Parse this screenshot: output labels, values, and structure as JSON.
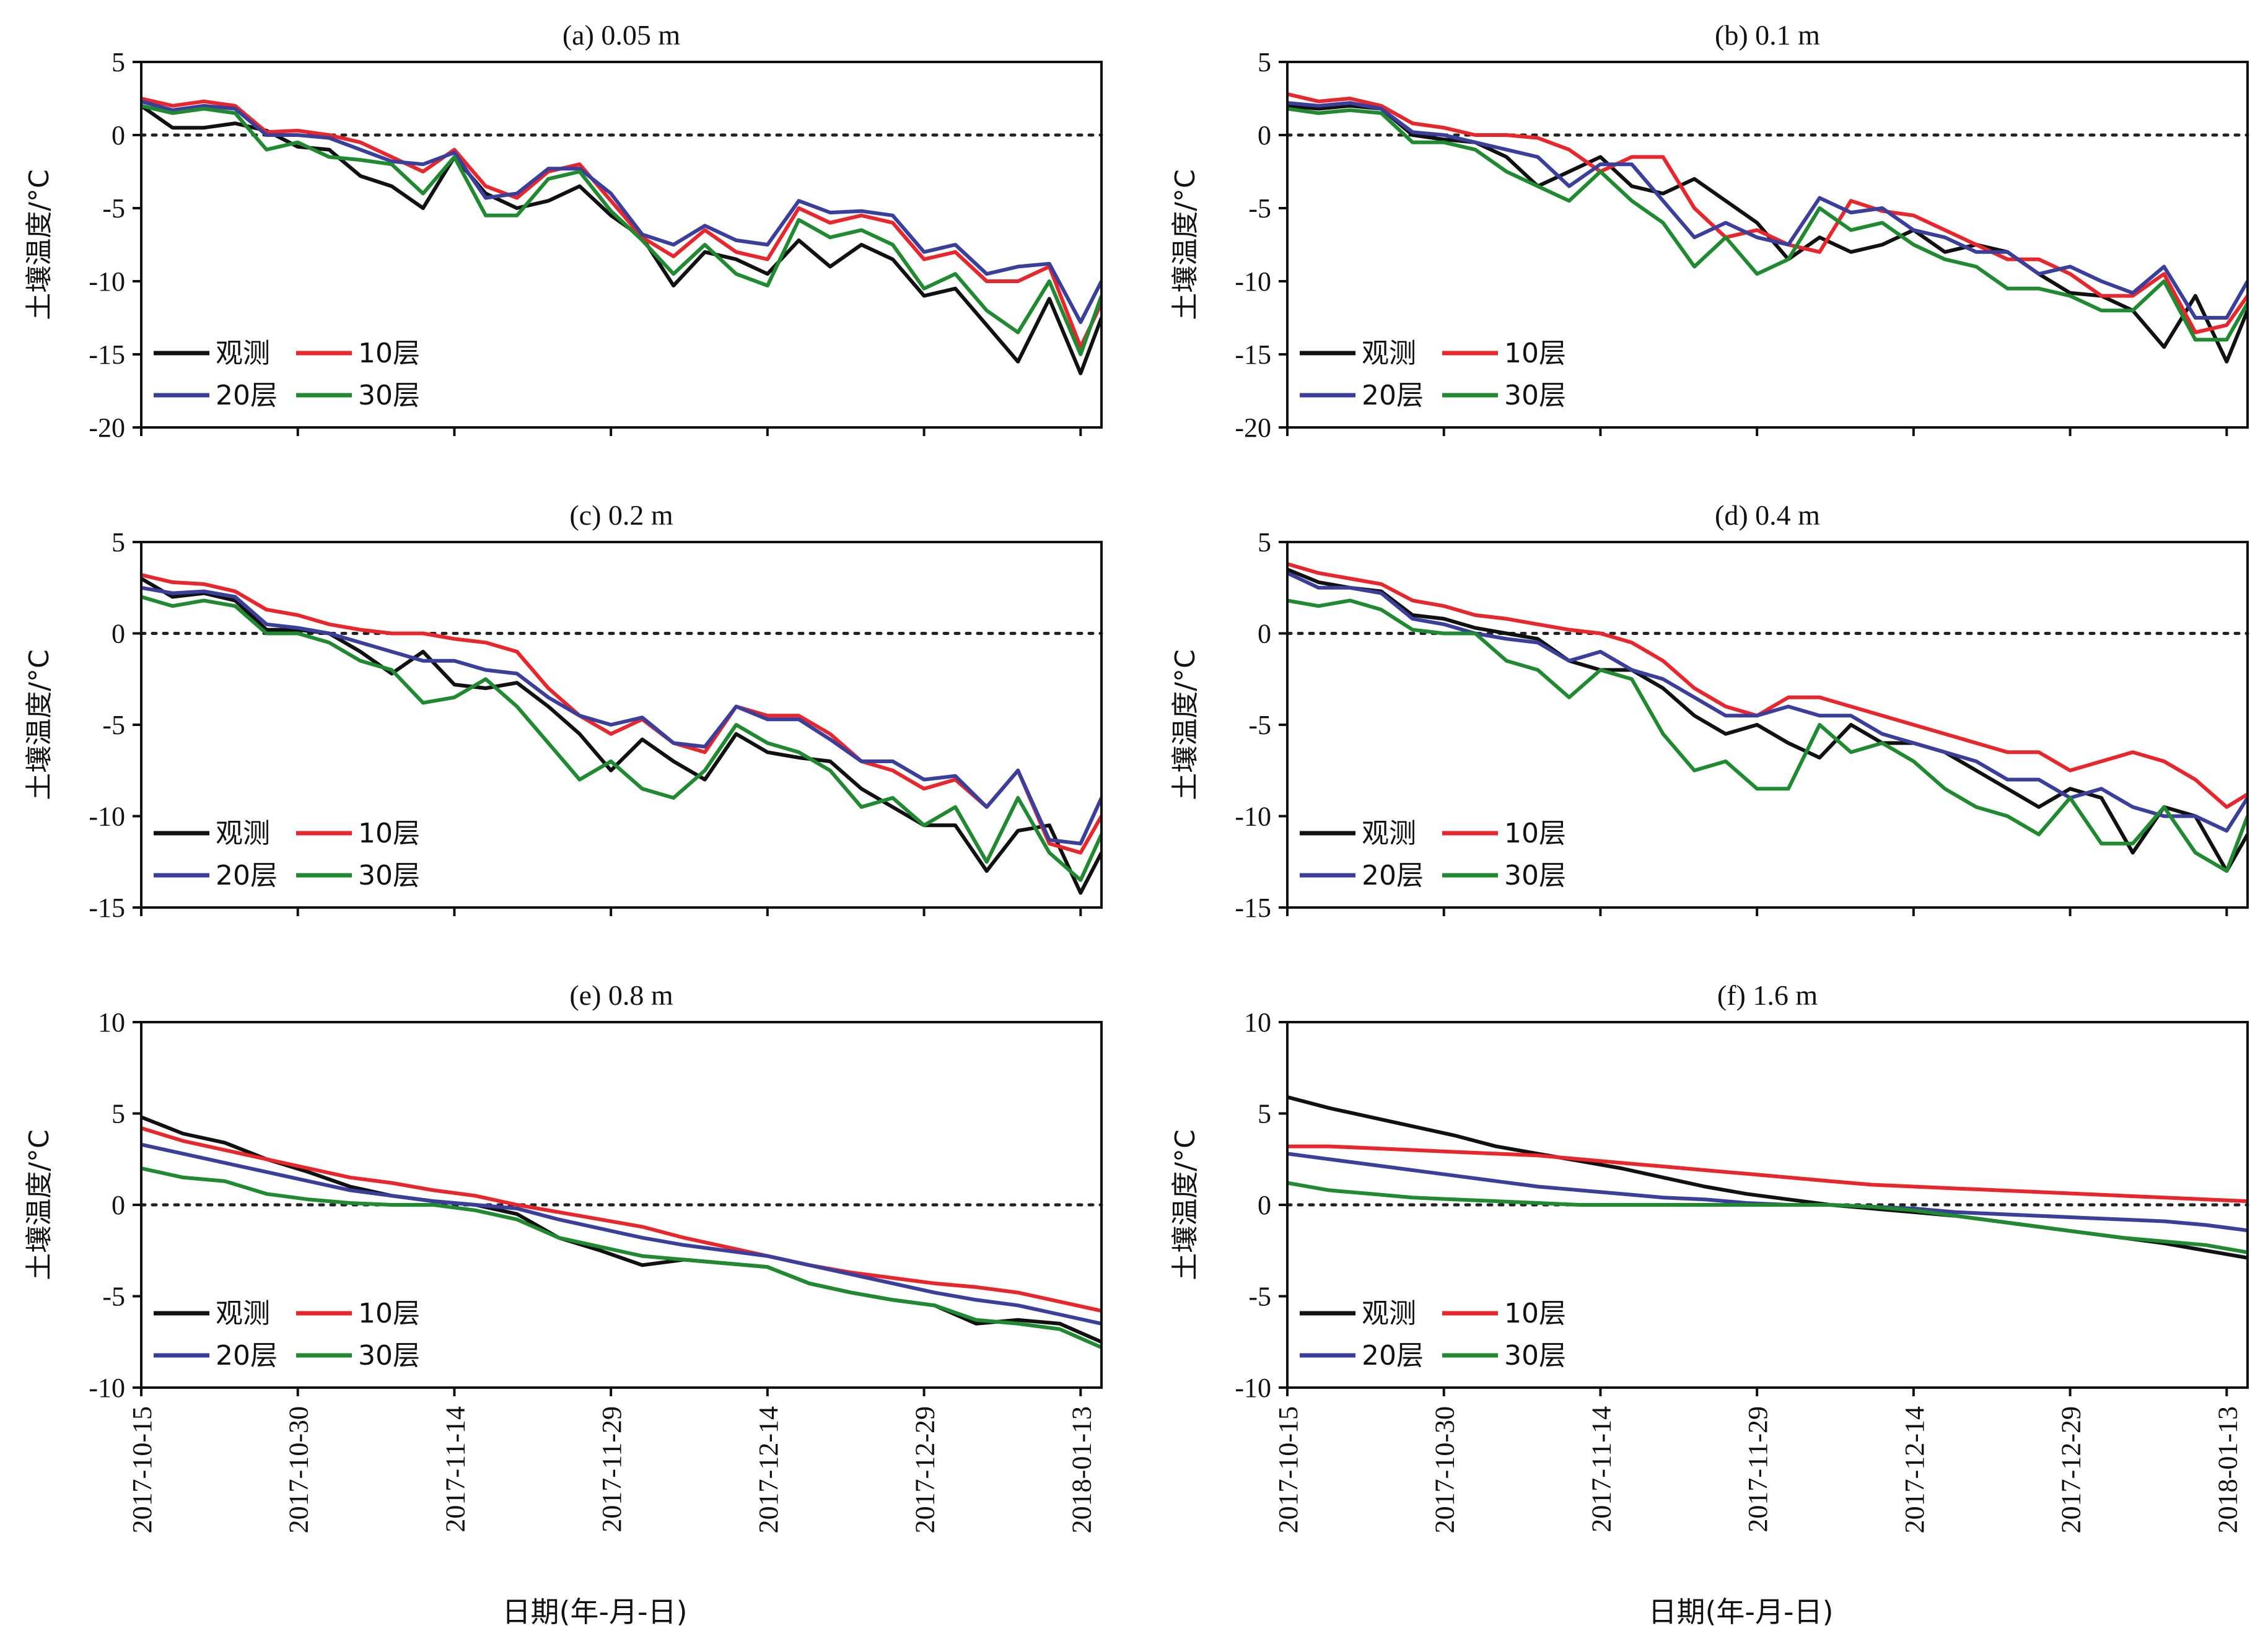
{
  "figure": {
    "xlabel": "日期(年-月-日)",
    "ylabel": "土壤温度/°C",
    "x_ticks": [
      "2017-10-15",
      "2017-10-30",
      "2017-11-14",
      "2017-11-29",
      "2017-12-14",
      "2017-12-29",
      "2018-01-13"
    ],
    "colors": {
      "观测": "#111111",
      "10层": "#e8262c",
      "20层": "#3b3f9c",
      "30层": "#1f8a2f"
    }
  },
  "chart_data": [
    {
      "type": "line",
      "title": "(a) 0.05 m",
      "ylim": [
        -20,
        5
      ],
      "yticks": [
        5,
        0,
        -5,
        -10,
        -15,
        -20
      ],
      "xlabel": "",
      "ylabel": "土壤温度/°C",
      "legend": [
        "观测",
        "10层",
        "20层",
        "30层"
      ],
      "legend_placement": "bottom-left",
      "x": [
        0,
        3,
        6,
        9,
        12,
        15,
        18,
        21,
        24,
        27,
        30,
        33,
        36,
        39,
        42,
        45,
        48,
        51,
        54,
        57,
        60,
        63,
        66,
        69,
        72,
        75,
        78,
        81,
        84,
        87,
        90,
        92
      ],
      "series": [
        {
          "name": "观测",
          "values": [
            2.0,
            0.5,
            0.5,
            0.8,
            0.3,
            -0.8,
            -1.0,
            -2.8,
            -3.5,
            -5.0,
            -1.5,
            -4.0,
            -5.0,
            -4.5,
            -3.5,
            -5.5,
            -7.0,
            -10.3,
            -8.0,
            -8.5,
            -9.5,
            -7.2,
            -9.0,
            -7.5,
            -8.5,
            -11.0,
            -10.5,
            -13.0,
            -15.5,
            -11.2,
            -16.3,
            -12.5
          ]
        },
        {
          "name": "10层",
          "values": [
            2.5,
            2.0,
            2.3,
            2.0,
            0.2,
            0.3,
            0.0,
            -0.5,
            -1.5,
            -2.5,
            -1.0,
            -3.5,
            -4.3,
            -2.5,
            -2.0,
            -4.5,
            -7.0,
            -8.3,
            -6.5,
            -8.0,
            -8.5,
            -5.0,
            -6.0,
            -5.5,
            -6.0,
            -8.5,
            -8.0,
            -10.0,
            -10.0,
            -9.0,
            -14.5,
            -11.5
          ]
        },
        {
          "name": "20层",
          "values": [
            2.3,
            1.7,
            2.0,
            1.8,
            0.0,
            0.0,
            -0.2,
            -1.0,
            -1.8,
            -2.0,
            -1.2,
            -4.3,
            -4.0,
            -2.3,
            -2.3,
            -4.0,
            -6.8,
            -7.5,
            -6.2,
            -7.2,
            -7.5,
            -4.5,
            -5.3,
            -5.2,
            -5.5,
            -8.0,
            -7.5,
            -9.5,
            -9.0,
            -8.8,
            -12.8,
            -10.0
          ]
        },
        {
          "name": "30层",
          "values": [
            2.0,
            1.5,
            1.8,
            1.5,
            -1.0,
            -0.5,
            -1.5,
            -1.7,
            -2.0,
            -4.0,
            -1.5,
            -5.5,
            -5.5,
            -3.0,
            -2.5,
            -5.2,
            -7.2,
            -9.5,
            -7.5,
            -9.5,
            -10.3,
            -5.8,
            -7.0,
            -6.5,
            -7.5,
            -10.5,
            -9.5,
            -12.0,
            -13.5,
            -10.0,
            -15.0,
            -11.0
          ]
        }
      ]
    },
    {
      "type": "line",
      "title": "(b) 0.1 m",
      "ylim": [
        -20,
        5
      ],
      "yticks": [
        5,
        0,
        -5,
        -10,
        -15,
        -20
      ],
      "xlabel": "",
      "ylabel": "土壤温度/°C",
      "legend": [
        "观测",
        "10层",
        "20层",
        "30层"
      ],
      "legend_placement": "bottom-left",
      "x": [
        0,
        3,
        6,
        9,
        12,
        15,
        18,
        21,
        24,
        27,
        30,
        33,
        36,
        39,
        42,
        45,
        48,
        51,
        54,
        57,
        60,
        63,
        66,
        69,
        72,
        75,
        78,
        81,
        84,
        87,
        90,
        92
      ],
      "series": [
        {
          "name": "观测",
          "values": [
            2.0,
            1.8,
            2.0,
            1.8,
            0.0,
            -0.3,
            -0.5,
            -1.5,
            -3.5,
            -2.5,
            -1.5,
            -3.5,
            -4.0,
            -3.0,
            -4.5,
            -6.0,
            -8.5,
            -7.0,
            -8.0,
            -7.5,
            -6.5,
            -8.0,
            -7.5,
            -8.0,
            -9.5,
            -10.8,
            -11.0,
            -12.0,
            -14.5,
            -11.0,
            -15.5,
            -12.0
          ]
        },
        {
          "name": "10层",
          "values": [
            2.8,
            2.3,
            2.5,
            2.0,
            0.8,
            0.5,
            0.0,
            0.0,
            -0.2,
            -1.0,
            -2.5,
            -1.5,
            -1.5,
            -5.0,
            -7.0,
            -6.5,
            -7.5,
            -8.0,
            -4.5,
            -5.2,
            -5.5,
            -6.5,
            -7.5,
            -8.5,
            -8.5,
            -9.5,
            -11.0,
            -11.0,
            -9.5,
            -13.5,
            -13.0,
            -11.0
          ]
        },
        {
          "name": "20层",
          "values": [
            2.2,
            2.0,
            2.2,
            1.8,
            0.2,
            0.0,
            -0.5,
            -1.0,
            -1.5,
            -3.5,
            -2.0,
            -2.0,
            -4.5,
            -7.0,
            -6.0,
            -7.0,
            -7.5,
            -4.3,
            -5.3,
            -5.0,
            -6.5,
            -7.0,
            -8.0,
            -8.0,
            -9.5,
            -9.0,
            -10.0,
            -10.8,
            -9.0,
            -12.5,
            -12.5,
            -10.0
          ]
        },
        {
          "name": "30层",
          "values": [
            1.8,
            1.5,
            1.7,
            1.5,
            -0.5,
            -0.5,
            -1.0,
            -2.5,
            -3.5,
            -4.5,
            -2.5,
            -4.5,
            -6.0,
            -9.0,
            -7.0,
            -9.5,
            -8.5,
            -5.0,
            -6.5,
            -6.0,
            -7.5,
            -8.5,
            -9.0,
            -10.5,
            -10.5,
            -11.0,
            -12.0,
            -12.0,
            -10.0,
            -14.0,
            -14.0,
            -11.5
          ]
        }
      ]
    },
    {
      "type": "line",
      "title": "(c) 0.2 m",
      "ylim": [
        -15,
        5
      ],
      "yticks": [
        5,
        0,
        -5,
        -10,
        -15
      ],
      "xlabel": "",
      "ylabel": "土壤温度/°C",
      "legend": [
        "观测",
        "10层",
        "20层",
        "30层"
      ],
      "legend_placement": "bottom-left",
      "x": [
        0,
        3,
        6,
        9,
        12,
        15,
        18,
        21,
        24,
        27,
        30,
        33,
        36,
        39,
        42,
        45,
        48,
        51,
        54,
        57,
        60,
        63,
        66,
        69,
        72,
        75,
        78,
        81,
        84,
        87,
        90,
        92
      ],
      "series": [
        {
          "name": "观测",
          "values": [
            3.0,
            2.0,
            2.2,
            1.8,
            0.2,
            0.2,
            0.0,
            -1.0,
            -2.2,
            -1.0,
            -2.8,
            -3.0,
            -2.7,
            -4.0,
            -5.5,
            -7.5,
            -5.8,
            -7.0,
            -8.0,
            -5.5,
            -6.5,
            -6.8,
            -7.0,
            -8.5,
            -9.5,
            -10.5,
            -10.5,
            -13.0,
            -10.8,
            -10.5,
            -14.2,
            -12.0
          ]
        },
        {
          "name": "10层",
          "values": [
            3.2,
            2.8,
            2.7,
            2.3,
            1.3,
            1.0,
            0.5,
            0.2,
            0.0,
            0.0,
            -0.3,
            -0.5,
            -1.0,
            -3.0,
            -4.5,
            -5.5,
            -4.7,
            -6.0,
            -6.5,
            -4.0,
            -4.5,
            -4.5,
            -5.5,
            -7.0,
            -7.5,
            -8.5,
            -8.0,
            -9.5,
            -7.5,
            -11.5,
            -12.0,
            -10.0
          ]
        },
        {
          "name": "20层",
          "values": [
            2.5,
            2.2,
            2.3,
            2.0,
            0.5,
            0.3,
            0.0,
            -0.5,
            -1.0,
            -1.5,
            -1.5,
            -2.0,
            -2.2,
            -3.5,
            -4.5,
            -5.0,
            -4.6,
            -6.0,
            -6.2,
            -4.0,
            -4.7,
            -4.7,
            -5.8,
            -7.0,
            -7.0,
            -8.0,
            -7.8,
            -9.5,
            -7.5,
            -11.3,
            -11.5,
            -9.0
          ]
        },
        {
          "name": "30层",
          "values": [
            2.0,
            1.5,
            1.8,
            1.5,
            0.0,
            0.0,
            -0.5,
            -1.5,
            -2.0,
            -3.8,
            -3.5,
            -2.5,
            -4.0,
            -6.0,
            -8.0,
            -7.0,
            -8.5,
            -9.0,
            -7.5,
            -5.0,
            -6.0,
            -6.5,
            -7.5,
            -9.5,
            -9.0,
            -10.5,
            -9.5,
            -12.5,
            -9.0,
            -12.0,
            -13.5,
            -11.0
          ]
        }
      ]
    },
    {
      "type": "line",
      "title": "(d) 0.4 m",
      "ylim": [
        -15,
        5
      ],
      "yticks": [
        5,
        0,
        -5,
        -10,
        -15
      ],
      "xlabel": "",
      "ylabel": "土壤温度/°C",
      "legend": [
        "观测",
        "10层",
        "20层",
        "30层"
      ],
      "legend_placement": "bottom-left",
      "x": [
        0,
        3,
        6,
        9,
        12,
        15,
        18,
        21,
        24,
        27,
        30,
        33,
        36,
        39,
        42,
        45,
        48,
        51,
        54,
        57,
        60,
        63,
        66,
        69,
        72,
        75,
        78,
        81,
        84,
        87,
        90,
        92
      ],
      "series": [
        {
          "name": "观测",
          "values": [
            3.5,
            2.8,
            2.5,
            2.3,
            1.0,
            0.8,
            0.3,
            0.0,
            -0.3,
            -1.5,
            -2.0,
            -2.0,
            -3.0,
            -4.5,
            -5.5,
            -5.0,
            -6.0,
            -6.8,
            -5.0,
            -6.0,
            -6.0,
            -6.5,
            -7.5,
            -8.5,
            -9.5,
            -8.5,
            -9.0,
            -12.0,
            -9.5,
            -10.0,
            -13.0,
            -11.0
          ]
        },
        {
          "name": "10层",
          "values": [
            3.8,
            3.3,
            3.0,
            2.7,
            1.8,
            1.5,
            1.0,
            0.8,
            0.5,
            0.2,
            0.0,
            -0.5,
            -1.5,
            -3.0,
            -4.0,
            -4.5,
            -3.5,
            -3.5,
            -4.0,
            -4.5,
            -5.0,
            -5.5,
            -6.0,
            -6.5,
            -6.5,
            -7.5,
            -7.0,
            -6.5,
            -7.0,
            -8.0,
            -9.5,
            -8.8
          ]
        },
        {
          "name": "20层",
          "values": [
            3.3,
            2.5,
            2.5,
            2.2,
            0.8,
            0.5,
            0.0,
            -0.3,
            -0.5,
            -1.5,
            -1.0,
            -2.0,
            -2.5,
            -3.5,
            -4.5,
            -4.5,
            -4.0,
            -4.5,
            -4.5,
            -5.5,
            -6.0,
            -6.5,
            -7.0,
            -8.0,
            -8.0,
            -9.0,
            -8.5,
            -9.5,
            -10.0,
            -10.0,
            -10.8,
            -9.0
          ]
        },
        {
          "name": "30层",
          "values": [
            1.8,
            1.5,
            1.8,
            1.3,
            0.2,
            0.0,
            0.0,
            -1.5,
            -2.0,
            -3.5,
            -2.0,
            -2.5,
            -5.5,
            -7.5,
            -7.0,
            -8.5,
            -8.5,
            -5.0,
            -6.5,
            -6.0,
            -7.0,
            -8.5,
            -9.5,
            -10.0,
            -11.0,
            -9.0,
            -11.5,
            -11.5,
            -9.5,
            -12.0,
            -13.0,
            -10.0
          ]
        }
      ]
    },
    {
      "type": "line",
      "title": "(e) 0.8 m",
      "ylim": [
        -10,
        10
      ],
      "yticks": [
        10,
        5,
        0,
        -5,
        -10
      ],
      "xlabel": "日期(年-月-日)",
      "ylabel": "土壤温度/°C",
      "legend": [
        "观测",
        "10层",
        "20层",
        "30层"
      ],
      "legend_placement": "bottom-left",
      "x": [
        0,
        4,
        8,
        12,
        16,
        20,
        24,
        28,
        32,
        36,
        40,
        44,
        48,
        52,
        56,
        60,
        64,
        68,
        72,
        76,
        80,
        84,
        88,
        92
      ],
      "series": [
        {
          "name": "观测",
          "values": [
            4.8,
            3.9,
            3.4,
            2.5,
            1.8,
            1.0,
            0.5,
            0.2,
            0.0,
            -0.5,
            -1.8,
            -2.5,
            -3.3,
            -3.0,
            -3.2,
            -3.4,
            -4.3,
            -4.8,
            -5.2,
            -5.5,
            -6.5,
            -6.3,
            -6.5,
            -7.5
          ]
        },
        {
          "name": "10层",
          "values": [
            4.2,
            3.5,
            3.0,
            2.5,
            2.0,
            1.5,
            1.2,
            0.8,
            0.5,
            0.0,
            -0.4,
            -0.8,
            -1.2,
            -1.8,
            -2.3,
            -2.8,
            -3.3,
            -3.7,
            -4.0,
            -4.3,
            -4.5,
            -4.8,
            -5.3,
            -5.8
          ]
        },
        {
          "name": "20层",
          "values": [
            3.3,
            2.8,
            2.3,
            1.8,
            1.3,
            0.8,
            0.5,
            0.2,
            0.0,
            -0.2,
            -0.8,
            -1.3,
            -1.8,
            -2.2,
            -2.5,
            -2.8,
            -3.3,
            -3.8,
            -4.3,
            -4.8,
            -5.2,
            -5.5,
            -6.0,
            -6.5
          ]
        },
        {
          "name": "30层",
          "values": [
            2.0,
            1.5,
            1.3,
            0.6,
            0.3,
            0.1,
            0.0,
            0.0,
            -0.3,
            -0.8,
            -1.8,
            -2.3,
            -2.8,
            -3.0,
            -3.2,
            -3.4,
            -4.3,
            -4.8,
            -5.2,
            -5.5,
            -6.3,
            -6.5,
            -6.8,
            -7.8
          ]
        }
      ]
    },
    {
      "type": "line",
      "title": "(f) 1.6 m",
      "ylim": [
        -10,
        10
      ],
      "yticks": [
        10,
        5,
        0,
        -5,
        -10
      ],
      "xlabel": "日期(年-月-日)",
      "ylabel": "土壤温度/°C",
      "legend": [
        "观测",
        "10层",
        "20层",
        "30层"
      ],
      "legend_placement": "bottom-left",
      "x": [
        0,
        4,
        8,
        12,
        16,
        20,
        24,
        28,
        32,
        36,
        40,
        44,
        48,
        52,
        56,
        60,
        64,
        68,
        72,
        76,
        80,
        84,
        88,
        92
      ],
      "series": [
        {
          "name": "观测",
          "values": [
            5.9,
            5.3,
            4.8,
            4.3,
            3.8,
            3.2,
            2.8,
            2.4,
            2.0,
            1.5,
            1.0,
            0.6,
            0.3,
            0.0,
            -0.2,
            -0.4,
            -0.6,
            -0.9,
            -1.2,
            -1.5,
            -1.8,
            -2.1,
            -2.5,
            -2.9
          ]
        },
        {
          "name": "10层",
          "values": [
            3.2,
            3.2,
            3.1,
            3.0,
            2.9,
            2.8,
            2.7,
            2.5,
            2.3,
            2.1,
            1.9,
            1.7,
            1.5,
            1.3,
            1.1,
            1.0,
            0.9,
            0.8,
            0.7,
            0.6,
            0.5,
            0.4,
            0.3,
            0.2
          ]
        },
        {
          "name": "20层",
          "values": [
            2.8,
            2.5,
            2.2,
            1.9,
            1.6,
            1.3,
            1.0,
            0.8,
            0.6,
            0.4,
            0.3,
            0.1,
            0.0,
            0.0,
            -0.1,
            -0.2,
            -0.4,
            -0.5,
            -0.6,
            -0.7,
            -0.8,
            -0.9,
            -1.1,
            -1.4
          ]
        },
        {
          "name": "30层",
          "values": [
            1.2,
            0.8,
            0.6,
            0.4,
            0.3,
            0.2,
            0.1,
            0.0,
            0.0,
            0.0,
            0.0,
            0.0,
            0.0,
            0.0,
            -0.1,
            -0.3,
            -0.6,
            -0.9,
            -1.2,
            -1.5,
            -1.8,
            -2.0,
            -2.2,
            -2.6
          ]
        }
      ]
    }
  ]
}
